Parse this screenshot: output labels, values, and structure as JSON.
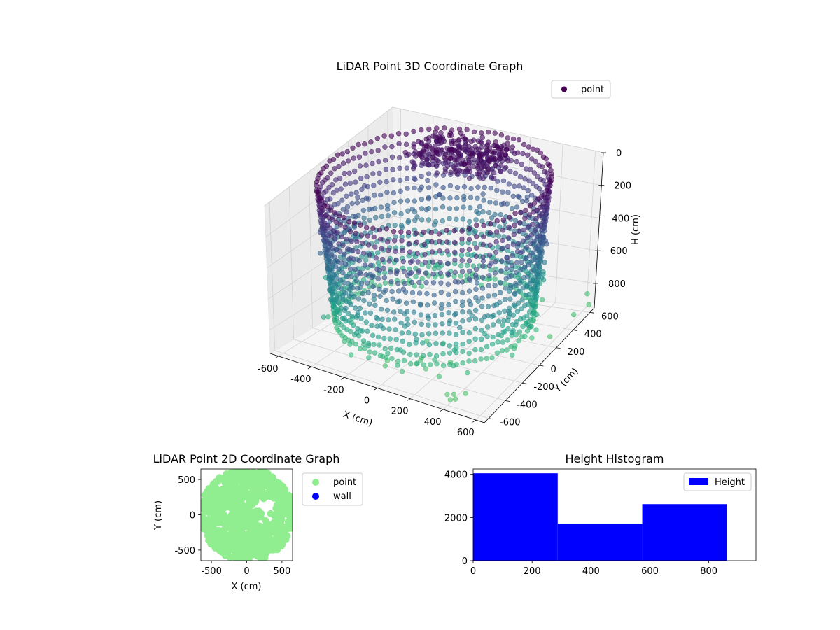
{
  "chart_data": [
    {
      "type": "scatter3d",
      "title": "LiDAR Point 3D Coordinate Graph",
      "xlabel": "X (cm)",
      "ylabel": "Y (cm)",
      "zlabel": "H (cm)",
      "xlim": [
        -650,
        650
      ],
      "ylim": [
        -650,
        650
      ],
      "zlim": [
        0,
        950
      ],
      "z_inverted": true,
      "xticks": [
        -600,
        -400,
        -200,
        0,
        200,
        400,
        600
      ],
      "yticks": [
        -600,
        -400,
        -200,
        0,
        200,
        400,
        600
      ],
      "zticks": [
        0,
        200,
        400,
        600,
        800
      ],
      "legend": [
        {
          "label": "point",
          "color": "#440154"
        }
      ],
      "colormap": "viridis",
      "series": [
        {
          "name": "point",
          "description": "dense cylindrical ring of points radius ~620 cm, heights 0–860 cm"
        }
      ],
      "outliers": [
        {
          "x": 470,
          "y": -520,
          "z": 900
        },
        {
          "x": 420,
          "y": -560,
          "z": 900
        },
        {
          "x": 390,
          "y": -580,
          "z": 900
        },
        {
          "x": 450,
          "y": -600,
          "z": 900
        },
        {
          "x": 430,
          "y": -620,
          "z": 900
        },
        {
          "x": 180,
          "y": -430,
          "z": 880
        },
        {
          "x": 120,
          "y": -380,
          "z": 870
        },
        {
          "x": 100,
          "y": -330,
          "z": 880
        },
        {
          "x": -40,
          "y": -460,
          "z": 880
        },
        {
          "x": 260,
          "y": -300,
          "z": 880
        },
        {
          "x": -20,
          "y": -520,
          "z": 880
        },
        {
          "x": 300,
          "y": -500,
          "z": 860
        },
        {
          "x": 60,
          "y": -200,
          "z": 850
        },
        {
          "x": 150,
          "y": -180,
          "z": 850
        },
        {
          "x": 620,
          "y": 180,
          "z": 880
        },
        {
          "x": 640,
          "y": 420,
          "z": 870
        },
        {
          "x": 660,
          "y": 560,
          "z": 880
        },
        {
          "x": 600,
          "y": 650,
          "z": 870
        },
        {
          "x": 560,
          "y": 80,
          "z": 850
        },
        {
          "x": -650,
          "y": -50,
          "z": 700
        }
      ]
    },
    {
      "type": "scatter",
      "title": "LiDAR Point 2D Coordinate Graph",
      "xlabel": "X (cm)",
      "ylabel": "Y (cm)",
      "xlim": [
        -650,
        650
      ],
      "ylim": [
        -650,
        650
      ],
      "xticks": [
        -500,
        0,
        500
      ],
      "yticks": [
        -500,
        0,
        500
      ],
      "legend": [
        {
          "label": "point",
          "color": "#90ee90"
        },
        {
          "label": "wall",
          "color": "#0000ff"
        }
      ],
      "series": [
        {
          "name": "point",
          "color": "#90ee90",
          "description": "dense filled disc radius ~650 cm"
        },
        {
          "name": "wall",
          "color": "#0000ff",
          "description": "no visible points"
        }
      ]
    },
    {
      "type": "bar",
      "title": "Height Histogram",
      "xlabel": "",
      "ylabel": "",
      "xlim": [
        0,
        960
      ],
      "ylim": [
        0,
        4250
      ],
      "xticks": [
        0,
        200,
        400,
        600,
        800
      ],
      "yticks": [
        0,
        2000,
        4000
      ],
      "legend": [
        {
          "label": "Height",
          "color": "#0000ff"
        }
      ],
      "bins": [
        {
          "start": 0,
          "end": 287,
          "value": 4050
        },
        {
          "start": 287,
          "end": 574,
          "value": 1720
        },
        {
          "start": 574,
          "end": 861,
          "value": 2620
        }
      ],
      "color": "#0000ff"
    }
  ]
}
